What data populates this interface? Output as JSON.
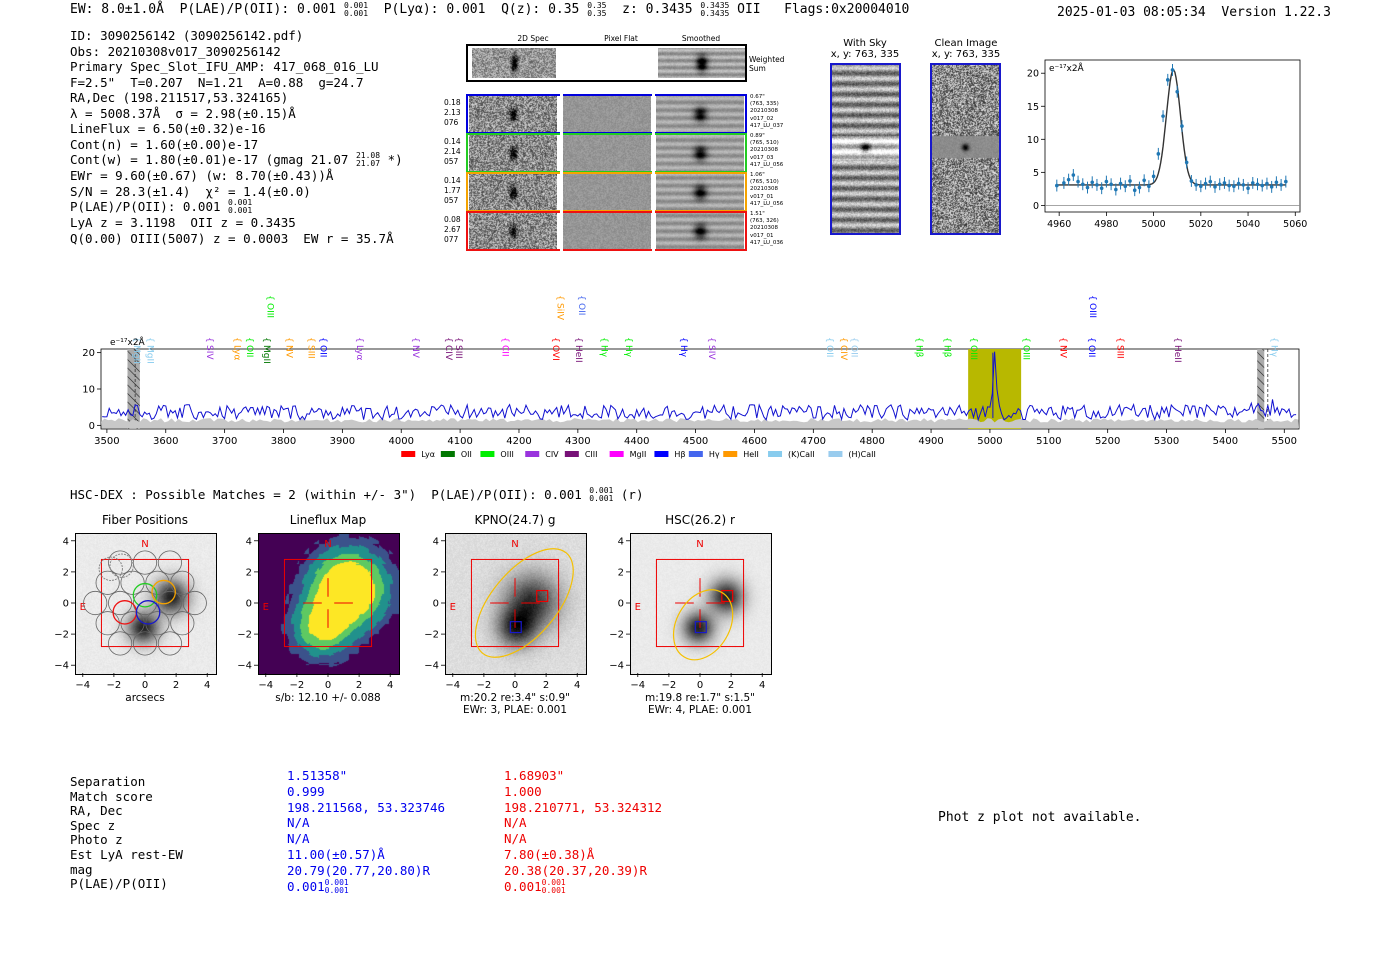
{
  "header": {
    "ew": "EW: 8.0±1.0Å",
    "plae": "P(LAE)/P(OII): 0.001",
    "plae_up": "0.001",
    "plae_dn": "0.001",
    "plya": "P(Lyα): 0.001",
    "qz": "Q(z): 0.35",
    "qz_up": "0.35",
    "qz_dn": "0.35",
    "z": "z: 0.3435",
    "z_up": "0.3435",
    "z_dn": "0.3435",
    "line_name": "OII",
    "flags": "Flags:0x20004010",
    "timestamp": "2025-01-03 08:05:34",
    "version": "Version 1.22.3"
  },
  "info": {
    "id": "ID: 3090256142 (3090256142.pdf)",
    "obs": "Obs: 20210308v017_3090256142",
    "primary": "Primary Spec_Slot_IFU_AMP: 417_068_016_LU",
    "params": "F=2.5\"  T=0.207  N=1.21  A=0.88  g=24.7",
    "radec": "RA,Dec (198.211517,53.324165)",
    "lambda": "λ = 5008.37Å  σ = 2.98(±0.15)Å",
    "lineflux": "LineFlux = 6.50(±0.32)e-16",
    "contn": "Cont(n) = 1.60(±0.00)e-17",
    "contw": "Cont(w) = 1.80(±0.01)e-17 (gmag 21.07",
    "gmag_up": "21.08",
    "gmag_dn": "21.07",
    "contw_end": "*)",
    "ewr": "EWr = 9.60(±0.67) (w: 8.70(±0.43))Å",
    "sn": "S/N = 28.3(±1.4)  χ² = 1.4(±0.0)",
    "plae": "P(LAE)/P(OII): 0.001",
    "plae_up": "0.001",
    "plae_dn": "0.001",
    "lya": "LyA z = 3.1198  OII z = 0.3435",
    "q": "Q(0.00) OIII(5007) z = 0.0003  EW r = 35.7Å"
  },
  "cutouts": {
    "col_2d": "2D Spec",
    "col_flat": "Pixel Flat",
    "col_smooth": "Smoothed",
    "weighted": [
      "Weighted",
      "Sum"
    ],
    "rows": [
      {
        "left": [
          "0.18",
          "2.13",
          "076"
        ],
        "right": [
          "0.67\"",
          "(763, 335)",
          "20210308",
          "v017_02",
          "417_LU_037"
        ],
        "color": "#0000dd"
      },
      {
        "left": [
          "0.14",
          "2.14",
          "057"
        ],
        "right": [
          "0.89\"",
          "(765, 510)",
          "20210308",
          "v017_03",
          "417_LU_056"
        ],
        "color": "#22cc22"
      },
      {
        "left": [
          "0.14",
          "1.77",
          "057"
        ],
        "right": [
          "1.06\"",
          "(765, 510)",
          "20210308",
          "v017_01",
          "417_LU_056"
        ],
        "color": "#f5a300"
      },
      {
        "left": [
          "0.08",
          "2.67",
          "077"
        ],
        "right": [
          "1.51\"",
          "(763, 326)",
          "20210308",
          "v017_01",
          "417_LU_036"
        ],
        "color": "#ee1111"
      }
    ],
    "with_sky": "With Sky",
    "with_sky_xy": "x, y: 763, 335",
    "clean": "Clean Image",
    "clean_xy": "x, y: 763, 335"
  },
  "zoom_chart": {
    "type": "scatter",
    "unit_label": "e⁻¹⁷x2Å",
    "x_ticks": [
      "4960",
      "4980",
      "5000",
      "5020",
      "5040",
      "5060"
    ],
    "y_ticks": [
      "0",
      "5",
      "10",
      "15",
      "20"
    ],
    "xlim": [
      4954,
      5062
    ],
    "ylim": [
      -1,
      22
    ],
    "points_x": [
      4959,
      4962,
      4964,
      4966,
      4968,
      4970,
      4972,
      4974,
      4976,
      4978,
      4980,
      4982,
      4984,
      4986,
      4988,
      4990,
      4992,
      4994,
      4996,
      4998,
      5000,
      5002,
      5004,
      5006,
      5008,
      5010,
      5012,
      5014,
      5016,
      5018,
      5020,
      5022,
      5024,
      5026,
      5028,
      5030,
      5032,
      5034,
      5036,
      5038,
      5040,
      5042,
      5044,
      5046,
      5048,
      5050,
      5052,
      5054,
      5056
    ],
    "points_y": [
      3.0,
      3.4,
      3.9,
      4.6,
      3.6,
      3.2,
      2.7,
      3.5,
      3.1,
      2.6,
      3.6,
      3.2,
      2.4,
      3.3,
      2.9,
      3.7,
      2.3,
      2.7,
      3.8,
      2.9,
      4.4,
      7.8,
      13.5,
      19.0,
      20.5,
      17.2,
      12.0,
      6.5,
      3.7,
      3.1,
      2.9,
      3.3,
      3.6,
      2.8,
      3.2,
      3.4,
      3.0,
      2.9,
      3.3,
      3.1,
      2.6,
      3.4,
      3.2,
      3.0,
      3.3,
      2.8,
      3.5,
      3.1,
      3.6
    ],
    "fit": {
      "continuum": 3.1,
      "amplitude": 17.4,
      "center": 5008.4,
      "sigma": 2.98
    }
  },
  "full_spectrum": {
    "type": "line",
    "unit_label": "e⁻¹⁷x2Å",
    "x_ticks": [
      "3500",
      "3600",
      "3700",
      "3800",
      "3900",
      "4000",
      "4100",
      "4200",
      "4300",
      "4400",
      "4500",
      "4600",
      "4700",
      "4800",
      "4900",
      "5000",
      "5100",
      "5200",
      "5300",
      "5400",
      "5500"
    ],
    "y_ticks": [
      "0",
      "10",
      "20"
    ],
    "xlim": [
      3490,
      5525
    ],
    "ylim": [
      -1,
      21
    ],
    "highlight_regions": [
      [
        4963,
        5053
      ]
    ],
    "hatched_regions": [
      [
        3535,
        3556
      ],
      [
        5454,
        5466
      ]
    ],
    "dashed_lines": [
      3548,
      5472
    ],
    "peak_center": 5008.4,
    "legend": [
      {
        "label": "Lyα",
        "color": "#ff0000"
      },
      {
        "label": "OII",
        "color": "#007700"
      },
      {
        "label": "OIII",
        "color": "#00ee00"
      },
      {
        "label": "CIV",
        "color": "#9933dd"
      },
      {
        "label": "CIII",
        "color": "#771177"
      },
      {
        "label": "MgII",
        "color": "#ff00ff"
      },
      {
        "label": "Hβ",
        "color": "#0000ff"
      },
      {
        "label": "Hγ",
        "color": "#4466ee"
      },
      {
        "label": "HeII",
        "color": "#ff9900"
      },
      {
        "label": "(K)CaII",
        "color": "#88ccee"
      },
      {
        "label": "(H)CaII",
        "color": "#99ccee"
      }
    ],
    "line_labels": [
      {
        "name": "MgII",
        "x": 3541,
        "color": "#88ccee",
        "row": 0
      },
      {
        "name": "MgII",
        "x": 3564,
        "color": "#88ccee",
        "row": 0
      },
      {
        "name": "SIV",
        "x": 3665,
        "color": "#9933dd",
        "row": 0
      },
      {
        "name": "Lyα",
        "x": 3712,
        "color": "#ff9900",
        "row": 0
      },
      {
        "name": "OII",
        "x": 3733,
        "color": "#00ee00",
        "row": 0
      },
      {
        "name": "MgII",
        "x": 3762,
        "color": "#007700",
        "row": 0
      },
      {
        "name": "OIII",
        "x": 3768,
        "color": "#00ee00",
        "row": 1
      },
      {
        "name": "NV",
        "x": 3800,
        "color": "#ff9900",
        "row": 0
      },
      {
        "name": "SIII",
        "x": 3837,
        "color": "#ff9900",
        "row": 0
      },
      {
        "name": "OII",
        "x": 3858,
        "color": "#0000ff",
        "row": 0
      },
      {
        "name": "Lyα",
        "x": 3920,
        "color": "#9933dd",
        "row": 0
      },
      {
        "name": "NV",
        "x": 4015,
        "color": "#9933dd",
        "row": 0
      },
      {
        "name": "CIV",
        "x": 4071,
        "color": "#771177",
        "row": 0
      },
      {
        "name": "SIII",
        "x": 4088,
        "color": "#771177",
        "row": 0
      },
      {
        "name": "CII",
        "x": 4167,
        "color": "#ff00ff",
        "row": 0
      },
      {
        "name": "OVI",
        "x": 4253,
        "color": "#ff0000",
        "row": 0
      },
      {
        "name": "SiIV",
        "x": 4260,
        "color": "#ff9900",
        "row": 1
      },
      {
        "name": "HeII",
        "x": 4292,
        "color": "#771177",
        "row": 0
      },
      {
        "name": "OII",
        "x": 4297,
        "color": "#4466ee",
        "row": 1
      },
      {
        "name": "Hγ",
        "x": 4335,
        "color": "#00ee00",
        "row": 0
      },
      {
        "name": "Hγ",
        "x": 4377,
        "color": "#00ee00",
        "row": 0
      },
      {
        "name": "Hγ",
        "x": 4470,
        "color": "#0000ff",
        "row": 0
      },
      {
        "name": "SIV",
        "x": 4518,
        "color": "#9933dd",
        "row": 0
      },
      {
        "name": "OII",
        "x": 4718,
        "color": "#88ccee",
        "row": 0
      },
      {
        "name": "CIV",
        "x": 4742,
        "color": "#ff9900",
        "row": 0
      },
      {
        "name": "OII",
        "x": 4760,
        "color": "#99ccee",
        "row": 0
      },
      {
        "name": "Hβ",
        "x": 4870,
        "color": "#00ee00",
        "row": 0
      },
      {
        "name": "Hβ",
        "x": 4918,
        "color": "#00ee00",
        "row": 0
      },
      {
        "name": "OIII",
        "x": 4963,
        "color": "#00ee00",
        "row": 0
      },
      {
        "name": "OIII",
        "x": 5052,
        "color": "#00ee00",
        "row": 0
      },
      {
        "name": "NV",
        "x": 5115,
        "color": "#ff0000",
        "row": 0
      },
      {
        "name": "OIII",
        "x": 5165,
        "color": "#0000ff",
        "row": 1
      },
      {
        "name": "OII",
        "x": 5163,
        "color": "#0000ff",
        "row": 0
      },
      {
        "name": "SIII",
        "x": 5212,
        "color": "#ff0000",
        "row": 0
      },
      {
        "name": "HeII",
        "x": 5309,
        "color": "#771177",
        "row": 0
      },
      {
        "name": "Hγ",
        "x": 5473,
        "color": "#88ccee",
        "row": 0
      }
    ]
  },
  "hsc": {
    "title": "HSC-DEX : Possible Matches = 2 (within +/- 3\")  P(LAE)/P(OII): 0.001",
    "plae_up": "0.001",
    "plae_dn": "0.001",
    "band": "(r)",
    "panels": [
      {
        "title": "Fiber Positions",
        "cap1": "arcsecs",
        "cap2": ""
      },
      {
        "title": "Lineflux Map",
        "cap1": "s/b: 12.10 +/- 0.088",
        "cap2": ""
      },
      {
        "title": "KPNO(24.7) g",
        "cap1": "m:20.2  re:3.4\"  s:0.9\"",
        "cap2": "EWr: 3, PLAE: 0.001"
      },
      {
        "title": "HSC(26.2) r",
        "cap1": "m:19.8  re:1.7\"  s:1.5\"",
        "cap2": "EWr: 4, PLAE: 0.001"
      }
    ],
    "ticks": [
      "−4",
      "−2",
      "0",
      "2",
      "4"
    ],
    "north": "N",
    "east": "E"
  },
  "match_table": {
    "labels": [
      "Separation",
      "Match score",
      "RA, Dec",
      "Spec z",
      "Photo z",
      "Est LyA rest-EW",
      "mag",
      "P(LAE)/P(OII)"
    ],
    "blue": [
      "1.51358\"",
      "0.999",
      "198.211568, 53.323746",
      "N/A",
      "N/A",
      "11.00(±0.57)Å",
      "20.79(20.77,20.80)R",
      "0.001"
    ],
    "blue_up": "0.001",
    "blue_dn": "0.001",
    "red": [
      "1.68903\"",
      "1.000",
      "198.210771, 53.324312",
      "N/A",
      "N/A",
      "7.80(±0.38)Å",
      "20.38(20.37,20.39)R",
      "0.001"
    ],
    "red_up": "0.001",
    "red_dn": "0.001",
    "blue_color": "#0000ee",
    "red_color": "#ee0000"
  },
  "photz_msg": "Phot z plot not available."
}
